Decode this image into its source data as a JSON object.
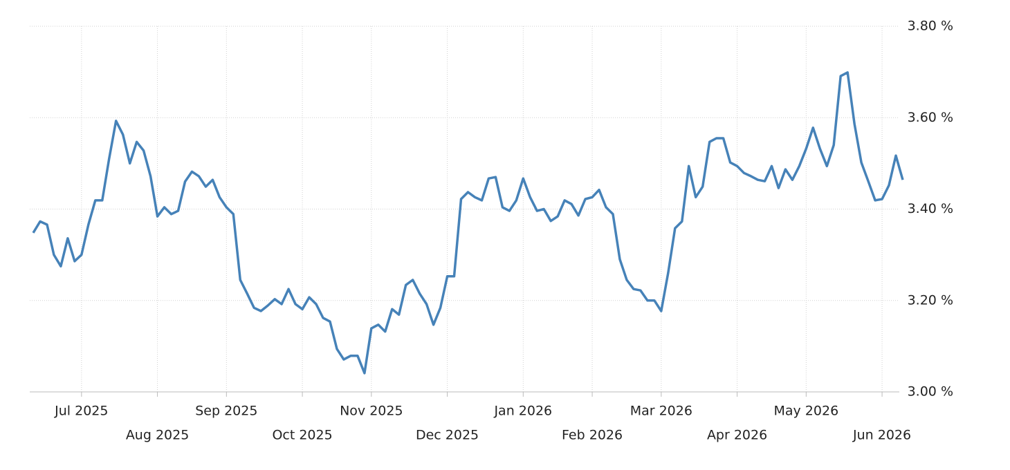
{
  "chart_data": {
    "type": "line",
    "categories": [
      null,
      null,
      null,
      null,
      null,
      null,
      null,
      "Jul 2025",
      null,
      null,
      null,
      null,
      null,
      null,
      null,
      null,
      null,
      null,
      "Aug 2025",
      null,
      null,
      null,
      null,
      null,
      null,
      null,
      null,
      null,
      "Sep 2025",
      null,
      null,
      null,
      null,
      null,
      null,
      null,
      null,
      null,
      null,
      "Oct 2025",
      null,
      null,
      null,
      null,
      null,
      null,
      null,
      null,
      null,
      "Nov 2025",
      null,
      null,
      null,
      null,
      null,
      null,
      null,
      null,
      null,
      null,
      "Dec 2025",
      null,
      null,
      null,
      null,
      null,
      null,
      null,
      null,
      null,
      null,
      "Jan 2026",
      null,
      null,
      null,
      null,
      null,
      null,
      null,
      null,
      null,
      "Feb 2026",
      null,
      null,
      null,
      null,
      null,
      null,
      null,
      null,
      null,
      "Mar 2026",
      null,
      null,
      null,
      null,
      null,
      null,
      null,
      null,
      null,
      null,
      "Apr 2026",
      null,
      null,
      null,
      null,
      null,
      null,
      null,
      null,
      null,
      "May 2026",
      null,
      null,
      null,
      null,
      null,
      null,
      null,
      null,
      null,
      null,
      "Jun 2026",
      null,
      null,
      null
    ],
    "values": [
      3.348,
      3.373,
      3.366,
      3.3,
      3.275,
      3.336,
      3.286,
      3.3,
      3.366,
      3.419,
      3.419,
      3.51,
      3.593,
      3.563,
      3.5,
      3.547,
      3.528,
      3.472,
      3.384,
      3.404,
      3.389,
      3.396,
      3.46,
      3.482,
      3.472,
      3.449,
      3.464,
      3.426,
      3.404,
      3.389,
      3.245,
      3.215,
      3.184,
      3.177,
      3.189,
      3.203,
      3.192,
      3.225,
      3.192,
      3.181,
      3.207,
      3.192,
      3.162,
      3.154,
      3.094,
      3.071,
      3.079,
      3.079,
      3.041,
      3.139,
      3.147,
      3.132,
      3.181,
      3.169,
      3.234,
      3.245,
      3.215,
      3.192,
      3.147,
      3.184,
      3.253,
      3.253,
      3.422,
      3.437,
      3.426,
      3.419,
      3.467,
      3.47,
      3.404,
      3.396,
      3.419,
      3.467,
      3.426,
      3.396,
      3.4,
      3.374,
      3.384,
      3.419,
      3.411,
      3.386,
      3.422,
      3.426,
      3.442,
      3.404,
      3.389,
      3.29,
      3.245,
      3.225,
      3.222,
      3.2,
      3.2,
      3.177,
      3.26,
      3.358,
      3.373,
      3.494,
      3.426,
      3.449,
      3.547,
      3.555,
      3.555,
      3.502,
      3.494,
      3.479,
      3.472,
      3.464,
      3.461,
      3.494,
      3.446,
      3.487,
      3.464,
      3.494,
      3.532,
      3.578,
      3.532,
      3.494,
      3.54,
      3.691,
      3.699,
      3.586,
      3.502,
      3.461,
      3.419,
      3.422,
      3.452,
      3.517,
      3.464
    ],
    "color": "#4682b8",
    "ylim": [
      3.0,
      3.8
    ],
    "yticks": [
      {
        "value": 3.0,
        "label": "3.00 %"
      },
      {
        "value": 3.2,
        "label": "3.20 %"
      },
      {
        "value": 3.4,
        "label": "3.40 %"
      },
      {
        "value": 3.6,
        "label": "3.60 %"
      },
      {
        "value": 3.8,
        "label": "3.80 %"
      }
    ],
    "grid": true
  }
}
